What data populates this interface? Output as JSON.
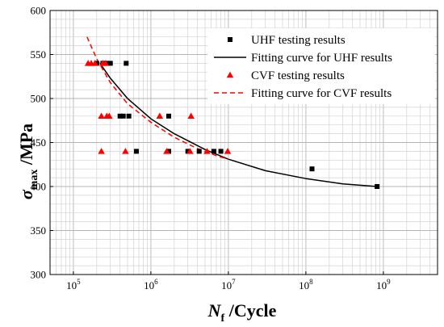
{
  "chart_data": {
    "type": "scatter",
    "xscale": "log",
    "xlim": [
      50000,
      5000000000
    ],
    "ylim": [
      300,
      600
    ],
    "xticks": [
      100000,
      1000000,
      10000000,
      100000000,
      1000000000
    ],
    "xtick_labels": [
      {
        "base": "10",
        "exp": "5"
      },
      {
        "base": "10",
        "exp": "6"
      },
      {
        "base": "10",
        "exp": "7"
      },
      {
        "base": "10",
        "exp": "8"
      },
      {
        "base": "10",
        "exp": "9"
      }
    ],
    "yticks": [
      300,
      350,
      400,
      450,
      500,
      550,
      600
    ],
    "ytick_labels": [
      "300",
      "350",
      "400",
      "450",
      "500",
      "550",
      "600"
    ],
    "grid": true,
    "legend_position": "top-right",
    "xlabel": {
      "main": "N",
      "sub": "f",
      "rest": " /Cycle"
    },
    "ylabel": {
      "main": "σ",
      "sub": "max",
      "rest": " /MPa"
    },
    "series": [
      {
        "name": "UHF testing results",
        "kind": "scatter",
        "marker": "square",
        "color": "#000000",
        "points": [
          [
            200000,
            540
          ],
          [
            240000,
            540
          ],
          [
            270000,
            540
          ],
          [
            300000,
            540
          ],
          [
            480000,
            540
          ],
          [
            400000,
            480
          ],
          [
            440000,
            480
          ],
          [
            520000,
            480
          ],
          [
            1700000,
            480
          ],
          [
            650000,
            440
          ],
          [
            1700000,
            440
          ],
          [
            3000000,
            440
          ],
          [
            4200000,
            440
          ],
          [
            6500000,
            440
          ],
          [
            8000000,
            440
          ],
          [
            120000000,
            420
          ],
          [
            830000000,
            400
          ]
        ]
      },
      {
        "name": "Fitting curve for UHF results",
        "kind": "line",
        "style": "solid",
        "color": "#000000",
        "points": [
          [
            220000,
            540
          ],
          [
            300000,
            523
          ],
          [
            500000,
            500
          ],
          [
            1000000,
            477
          ],
          [
            2000000,
            460
          ],
          [
            5000000,
            442
          ],
          [
            10000000,
            431
          ],
          [
            30000000,
            418
          ],
          [
            100000000,
            409
          ],
          [
            300000000,
            403
          ],
          [
            830000000,
            400
          ]
        ]
      },
      {
        "name": "CVF testing results",
        "kind": "scatter",
        "marker": "triangle",
        "color": "#ff0000",
        "points": [
          [
            155000,
            540
          ],
          [
            170000,
            540
          ],
          [
            190000,
            540
          ],
          [
            240000,
            540
          ],
          [
            260000,
            540
          ],
          [
            230000,
            480
          ],
          [
            270000,
            480
          ],
          [
            290000,
            480
          ],
          [
            1300000,
            480
          ],
          [
            3300000,
            480
          ],
          [
            230000,
            440
          ],
          [
            470000,
            440
          ],
          [
            1600000,
            440
          ],
          [
            3200000,
            440
          ],
          [
            5300000,
            440
          ],
          [
            9800000,
            440
          ]
        ]
      },
      {
        "name": "Fitting curve for CVF results",
        "kind": "line",
        "style": "dashed",
        "color": "#ff0000",
        "points": [
          [
            150000,
            570
          ],
          [
            200000,
            545
          ],
          [
            300000,
            518
          ],
          [
            500000,
            494
          ],
          [
            1000000,
            473
          ],
          [
            2000000,
            456
          ],
          [
            4000000,
            443
          ],
          [
            7000000,
            435
          ],
          [
            10000000,
            431
          ]
        ]
      }
    ]
  }
}
